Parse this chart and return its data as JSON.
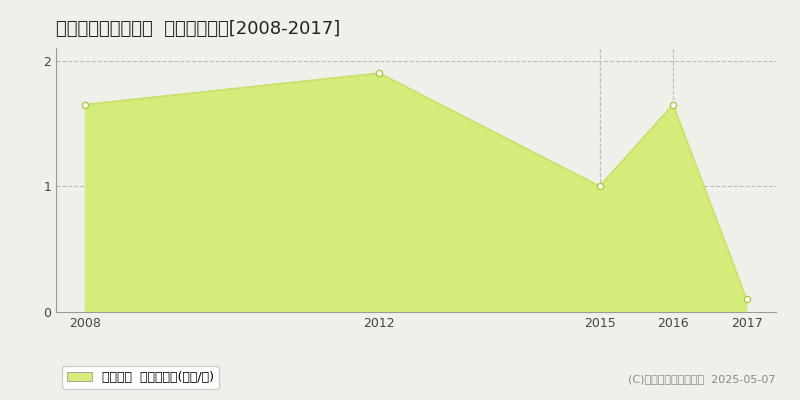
{
  "title": "福知山市大江町蓼原  土地価格推移[2008-2017]",
  "years": [
    2008,
    2012,
    2015,
    2016,
    2017
  ],
  "values": [
    1.65,
    1.9,
    1.0,
    1.65,
    0.1
  ],
  "line_color": "#c8e06e",
  "fill_color": "#d4ed7a",
  "marker_color": "#ffffff",
  "marker_edge_color": "#b0c840",
  "xlim": [
    2007.6,
    2017.4
  ],
  "ylim": [
    0,
    2.1
  ],
  "yticks": [
    0,
    1,
    2
  ],
  "xticks": [
    2008,
    2012,
    2015,
    2016,
    2017
  ],
  "vgrid_lines": [
    2015,
    2016
  ],
  "grid_color": "#bbbbbb",
  "background_color": "#f0f0eb",
  "plot_bg_color": "#f0f0eb",
  "legend_label": "土地価格  平均坪単価(万円/坪)",
  "copyright_text": "(C)土地価格ドットコム  2025-05-07",
  "title_fontsize": 13,
  "tick_fontsize": 9,
  "legend_fontsize": 9,
  "copyright_fontsize": 8
}
